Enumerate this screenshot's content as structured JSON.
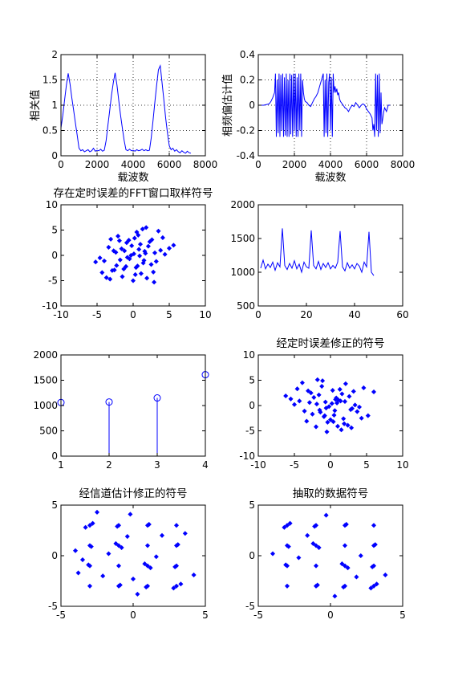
{
  "chart_data": [
    {
      "type": "line",
      "xlabel": "载波数",
      "ylabel": "相关值",
      "xlim": [
        0,
        8000
      ],
      "ylim": [
        0,
        2
      ],
      "xticks": [
        0,
        2000,
        4000,
        6000,
        8000
      ],
      "yticks": [
        0,
        0.5,
        1,
        1.5,
        2
      ],
      "ytick_labels": [
        "0",
        "0.5",
        "1",
        "1.5",
        "2"
      ],
      "grid": true,
      "series": [
        {
          "color": "#0000ff",
          "x": [
            0,
            100,
            200,
            300,
            400,
            500,
            600,
            700,
            800,
            900,
            1000,
            1100,
            1200,
            1300,
            1400,
            1500,
            1600,
            1700,
            1800,
            1900,
            2000,
            2100,
            2200,
            2300,
            2400,
            2500,
            2600,
            2700,
            2800,
            2900,
            3000,
            3100,
            3200,
            3300,
            3400,
            3500,
            3600,
            3700,
            3800,
            3900,
            4000,
            4100,
            4200,
            4300,
            4400,
            4500,
            4600,
            4700,
            4800,
            4900,
            5000,
            5100,
            5200,
            5300,
            5400,
            5500,
            5600,
            5700,
            5800,
            5900,
            6000,
            6100,
            6200,
            6300,
            6400,
            6500,
            6600,
            6700,
            6800,
            6900,
            7000,
            7100,
            7200
          ],
          "y": [
            0.55,
            0.8,
            1.1,
            1.4,
            1.63,
            1.42,
            1.15,
            0.9,
            0.65,
            0.4,
            0.15,
            0.1,
            0.12,
            0.08,
            0.1,
            0.12,
            0.08,
            0.1,
            0.15,
            0.09,
            0.11,
            0.1,
            0.13,
            0.09,
            0.11,
            0.3,
            0.6,
            0.9,
            1.2,
            1.45,
            1.64,
            1.4,
            1.1,
            0.8,
            0.55,
            0.3,
            0.12,
            0.1,
            0.13,
            0.1,
            0.11,
            0.09,
            0.12,
            0.1,
            0.11,
            0.13,
            0.1,
            0.12,
            0.1,
            0.11,
            0.35,
            0.7,
            1.05,
            1.4,
            1.7,
            1.78,
            1.45,
            1.1,
            0.75,
            0.45,
            0.2,
            0.12,
            0.15,
            0.09,
            0.12,
            0.08,
            0.06,
            0.1,
            0.07,
            0.05,
            0.09,
            0.06,
            0.05
          ]
        }
      ]
    },
    {
      "type": "line",
      "xlabel": "载波数",
      "ylabel": "相频偏估计值",
      "xlim": [
        0,
        8000
      ],
      "ylim": [
        -0.4,
        0.4
      ],
      "xticks": [
        0,
        2000,
        4000,
        6000,
        8000
      ],
      "yticks": [
        -0.4,
        -0.2,
        0,
        0.2,
        0.4
      ],
      "ytick_labels": [
        "-0.4",
        "-0.2",
        "0",
        "0.2",
        "0.4"
      ],
      "grid": true,
      "series": [
        {
          "color": "#0000ff",
          "x": [
            0,
            300,
            600,
            700,
            800,
            900,
            950,
            1000,
            1050,
            1100,
            1150,
            1200,
            1250,
            1300,
            1350,
            1400,
            1450,
            1500,
            1550,
            1600,
            1650,
            1700,
            1750,
            1800,
            1850,
            1900,
            1950,
            2000,
            2050,
            2100,
            2150,
            2200,
            2250,
            2300,
            2350,
            2400,
            2450,
            2500,
            2550,
            2600,
            2700,
            2800,
            2900,
            3000,
            3100,
            3200,
            3300,
            3400,
            3500,
            3600,
            3650,
            3700,
            3750,
            3800,
            3850,
            3900,
            3950,
            4000,
            4050,
            4100,
            4150,
            4200,
            4250,
            4300,
            4350,
            4400,
            4450,
            4500,
            4550,
            4600,
            4700,
            4800,
            4900,
            5000,
            5100,
            5200,
            5300,
            5400,
            5500,
            5600,
            5700,
            5800,
            5900,
            6000,
            6100,
            6200,
            6300,
            6350,
            6400,
            6450,
            6500,
            6550,
            6600,
            6650,
            6700,
            6750,
            6800,
            6850,
            6900,
            6950,
            7000,
            7100,
            7200,
            7300
          ],
          "y": [
            0.0,
            0.0,
            0.01,
            0.03,
            0.06,
            0.1,
            0.25,
            -0.25,
            0.2,
            -0.22,
            0.25,
            -0.25,
            0.24,
            -0.2,
            0.25,
            -0.25,
            0.22,
            -0.24,
            0.25,
            -0.25,
            0.2,
            -0.25,
            0.25,
            -0.23,
            0.24,
            -0.25,
            0.25,
            -0.2,
            0.25,
            -0.25,
            0.22,
            -0.25,
            0.25,
            -0.2,
            0.25,
            -0.25,
            0.2,
            0.1,
            0.05,
            0.03,
            0.02,
            0.0,
            -0.01,
            0.02,
            0.05,
            0.07,
            0.1,
            0.15,
            0.2,
            0.25,
            -0.25,
            0.2,
            -0.22,
            0.25,
            -0.25,
            0.18,
            0.25,
            -0.2,
            0.22,
            -0.25,
            0.25,
            0.1,
            0.15,
            0.1,
            0.13,
            0.08,
            0.1,
            0.05,
            0.03,
            0.02,
            0.0,
            -0.02,
            -0.03,
            -0.05,
            -0.02,
            0.0,
            -0.01,
            0.02,
            0.0,
            -0.02,
            0.0,
            0.01,
            0.0,
            -0.03,
            -0.05,
            -0.07,
            -0.1,
            -0.2,
            -0.15,
            -0.25,
            0.25,
            -0.2,
            0.24,
            -0.25,
            0.25,
            -0.22,
            0.1,
            -0.15,
            -0.1,
            -0.05,
            -0.02,
            -0.05,
            0.0,
            0.0
          ]
        }
      ]
    },
    {
      "type": "scatter",
      "title": "存在定时误差的FFT窗口取样符号",
      "xlim": [
        -10,
        10
      ],
      "ylim": [
        -10,
        10
      ],
      "xticks": [
        -10,
        -5,
        0,
        5,
        10
      ],
      "yticks": [
        -10,
        -5,
        0,
        5,
        10
      ],
      "grid": false,
      "series": [
        {
          "color": "#0000ff",
          "marker": "diamond",
          "x": [
            0.1,
            -0.5,
            0.8,
            1.4,
            -1.2,
            2.1,
            -2.3,
            0.4,
            -0.9,
            1.7,
            -1.8,
            2.6,
            -2.9,
            0.2,
            1.1,
            -0.3,
            3.2,
            -3.4,
            0.7,
            -1.5,
            2.3,
            -2.6,
            1.6,
            -0.8,
            3.8,
            -4.0,
            0.5,
            1.9,
            -2.1,
            4.4,
            -4.6,
            2.8,
            -3.1,
            0.0,
            1.3,
            -1.0,
            5.0,
            -5.2,
            3.5,
            -3.7,
            0.9,
            -0.2,
            2.5,
            -2.4,
            1.0,
            -1.3,
            4.1,
            -4.3,
            0.3,
            1.8,
            -1.9,
            5.6,
            -3.2,
            2.9,
            -0.6,
            3.0,
            -2.7,
            1.5,
            -1.6,
            0.6
          ],
          "y": [
            0.3,
            -0.7,
            1.2,
            -1.5,
            0.9,
            1.8,
            -2.0,
            -2.4,
            2.5,
            0.4,
            -0.9,
            3.1,
            -3.0,
            3.4,
            -3.6,
            0.0,
            -1.2,
            1.6,
            4.0,
            -4.2,
            2.7,
            -2.9,
            0.8,
            -0.4,
            1.0,
            -1.1,
            4.6,
            -4.5,
            3.8,
            0.2,
            -0.5,
            -3.3,
            3.2,
            -5.0,
            5.2,
            -2.2,
            1.4,
            -1.3,
            4.8,
            -4.4,
            -0.1,
            1.9,
            -1.8,
            0.6,
            2.2,
            -2.7,
            3.5,
            -3.4,
            -3.8,
            5.5,
            2.9,
            2.0,
            -4.7,
            -5.3,
            3.0,
            0.5,
            0.9,
            -1.0,
            1.3,
            -2.1
          ]
        }
      ]
    },
    {
      "type": "line",
      "xlim": [
        0,
        60
      ],
      "ylim": [
        500,
        2000
      ],
      "xticks": [
        0,
        20,
        40,
        60
      ],
      "yticks": [
        500,
        1000,
        1500,
        2000
      ],
      "grid": false,
      "series": [
        {
          "color": "#0000ff",
          "x": [
            1,
            2,
            3,
            4,
            5,
            6,
            7,
            8,
            9,
            10,
            11,
            12,
            13,
            14,
            15,
            16,
            17,
            18,
            19,
            20,
            21,
            22,
            23,
            24,
            25,
            26,
            27,
            28,
            29,
            30,
            31,
            32,
            33,
            34,
            35,
            36,
            37,
            38,
            39,
            40,
            41,
            42,
            43,
            44,
            45,
            46,
            47,
            48
          ],
          "y": [
            1060,
            1180,
            1050,
            1120,
            1070,
            1150,
            1030,
            1140,
            1080,
            1650,
            1100,
            1040,
            1130,
            1060,
            1170,
            1050,
            1120,
            1000,
            1150,
            1080,
            1060,
            1620,
            1100,
            1050,
            1160,
            1040,
            1130,
            1070,
            1140,
            1050,
            1100,
            1060,
            1150,
            1610,
            1080,
            1020,
            1140,
            1060,
            1110,
            1050,
            1130,
            1090,
            1000,
            1150,
            1080,
            1600,
            1000,
            950
          ]
        }
      ]
    },
    {
      "type": "stem",
      "xlim": [
        1,
        4
      ],
      "ylim": [
        0,
        2000
      ],
      "xticks": [
        1,
        2,
        3,
        4
      ],
      "yticks": [
        0,
        500,
        1000,
        1500,
        2000
      ],
      "grid": false,
      "series": [
        {
          "color": "#0000ff",
          "x": [
            1,
            2,
            3,
            4
          ],
          "y": [
            1060,
            1070,
            1150,
            1610
          ]
        }
      ]
    },
    {
      "type": "scatter",
      "title": "经定时误差修正的符号",
      "xlim": [
        -10,
        10
      ],
      "ylim": [
        -10,
        10
      ],
      "xticks": [
        -10,
        -5,
        0,
        5,
        10
      ],
      "yticks": [
        -10,
        -5,
        0,
        5,
        10
      ],
      "grid": false,
      "series": [
        {
          "color": "#0000ff",
          "marker": "diamond",
          "x": [
            0.2,
            -0.6,
            1.1,
            -1.4,
            2.0,
            -2.3,
            0.5,
            -0.9,
            1.6,
            -1.9,
            2.8,
            -3.1,
            0.0,
            1.3,
            -0.4,
            3.4,
            -3.6,
            0.8,
            -1.2,
            2.4,
            -2.7,
            1.8,
            -0.7,
            4.0,
            -4.3,
            0.6,
            2.1,
            -2.0,
            4.6,
            -5.0,
            3.0,
            -3.3,
            0.3,
            1.5,
            -1.1,
            5.2,
            -5.5,
            3.7,
            -3.9,
            1.0,
            -0.2,
            2.6,
            -2.5,
            0.9,
            -1.6,
            4.3,
            -4.6,
            0.4,
            1.9,
            -1.8,
            6.0,
            -6.2,
            2.9,
            -0.5,
            3.2,
            -2.9,
            1.4,
            -1.5,
            0.7,
            -0.8
          ],
          "y": [
            0.4,
            -0.5,
            1.1,
            -1.3,
            0.8,
            1.6,
            -1.9,
            -2.2,
            2.3,
            0.3,
            -0.8,
            2.9,
            -2.8,
            3.2,
            -3.3,
            0.1,
            -1.1,
            1.5,
            3.8,
            -3.9,
            2.5,
            -2.6,
            0.7,
            -0.3,
            0.9,
            -1.0,
            4.3,
            -4.2,
            3.5,
            0.2,
            -0.6,
            -3.1,
            3.0,
            -4.8,
            4.9,
            -2.0,
            1.3,
            -1.2,
            4.5,
            -4.1,
            -0.2,
            1.8,
            -1.7,
            0.5,
            2.1,
            -2.5,
            3.3,
            -3.2,
            -3.6,
            5.1,
            2.7,
            1.9,
            -4.4,
            -5.2,
            2.8,
            0.6,
            0.9,
            -0.9,
            1.2,
            -2.0
          ]
        }
      ]
    },
    {
      "type": "scatter",
      "title": "经信道估计修正的符号",
      "xlim": [
        -5,
        5
      ],
      "ylim": [
        -5,
        5
      ],
      "xticks": [
        -5,
        0,
        5
      ],
      "yticks": [
        -5,
        0,
        5
      ],
      "grid": false,
      "series": [
        {
          "color": "#0000ff",
          "marker": "diamond",
          "x": [
            -3,
            -3,
            -3,
            -3,
            -1,
            -1,
            -1,
            -1,
            1,
            1,
            1,
            1,
            3,
            3,
            3,
            3,
            -2.8,
            -3.3,
            -1.2,
            -0.8,
            1.2,
            0.8,
            2.8,
            3.3,
            -3.1,
            -0.9,
            1.1,
            3.1,
            -2.9,
            -1.1,
            0.9,
            2.9,
            -4.0,
            -3.8,
            -0.2,
            0.3,
            2.0,
            -2.1,
            4.2,
            -0.4,
            1.6,
            -1.7,
            3.6,
            -3.5,
            0.0,
            -2.5
          ],
          "y": [
            3,
            1,
            -1,
            -3,
            3,
            1,
            -1,
            -3,
            3,
            1,
            -1,
            -3,
            3,
            1,
            -1,
            -3,
            3.2,
            2.8,
            1.2,
            0.8,
            -1.2,
            -0.8,
            -3.2,
            -2.8,
            -0.9,
            -2.9,
            3.1,
            1.1,
            0.9,
            2.9,
            -3.1,
            -1.1,
            0.5,
            -1.7,
            4.1,
            -3.8,
            2.0,
            -2.0,
            -1.9,
            1.9,
            -0.1,
            0.2,
            2.2,
            -0.4,
            -2.3,
            4.3
          ]
        }
      ]
    },
    {
      "type": "scatter",
      "title": "抽取的数据符号",
      "xlim": [
        -5,
        5
      ],
      "ylim": [
        -5,
        5
      ],
      "xticks": [
        -5,
        0,
        5
      ],
      "yticks": [
        -5,
        0,
        5
      ],
      "grid": false,
      "series": [
        {
          "color": "#0000ff",
          "marker": "diamond",
          "x": [
            -3,
            -3,
            -3,
            -3,
            -1,
            -1,
            -1,
            -1,
            1,
            1,
            1,
            1,
            3,
            3,
            3,
            3,
            -2.8,
            -3.2,
            -1.2,
            -0.8,
            1.2,
            0.8,
            2.8,
            3.2,
            -3.1,
            -0.9,
            1.1,
            3.1,
            -2.9,
            -1.1,
            0.9,
            2.9,
            -1.6,
            3.8,
            -4.0,
            1.8,
            -0.3,
            0.3,
            2.1,
            -2.2
          ],
          "y": [
            3,
            1,
            -1,
            -3,
            3,
            1,
            -1,
            -3,
            3,
            1,
            -1,
            -3,
            3,
            1,
            -1,
            -3,
            3.2,
            2.8,
            1.2,
            0.8,
            -1.2,
            -0.8,
            -3.2,
            -2.8,
            -0.9,
            -2.9,
            3.1,
            1.1,
            0.9,
            2.9,
            -3.1,
            -1.1,
            2.0,
            -1.9,
            0.2,
            -2.1,
            4.0,
            -4.0,
            0.0,
            -0.2
          ]
        }
      ]
    }
  ]
}
